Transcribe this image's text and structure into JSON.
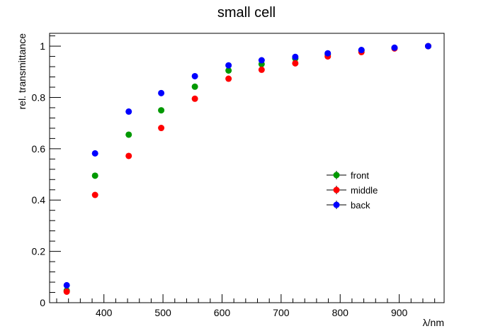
{
  "chart_data": {
    "type": "scatter",
    "title": "small cell",
    "xlabel": "λ/nm",
    "ylabel": "rel. transmittance",
    "xlim": [
      308,
      976
    ],
    "ylim": [
      0,
      1.05
    ],
    "x_ticks": [
      400,
      500,
      600,
      700,
      800,
      900
    ],
    "y_ticks": [
      0,
      0.2,
      0.4,
      0.6,
      0.8,
      1
    ],
    "grid": false,
    "legend_position": "center-right",
    "series": [
      {
        "name": "front",
        "color": "#009900",
        "x": [
          337,
          385,
          442,
          497,
          554,
          611,
          667,
          724,
          779,
          836,
          892,
          949
        ],
        "y": [
          0.047,
          0.495,
          0.655,
          0.75,
          0.842,
          0.905,
          0.93,
          0.952,
          0.967,
          0.983,
          0.993,
          1.0
        ]
      },
      {
        "name": "middle",
        "color": "#ff0000",
        "x": [
          337,
          385,
          442,
          497,
          554,
          611,
          667,
          724,
          779,
          836,
          892,
          949
        ],
        "y": [
          0.043,
          0.42,
          0.572,
          0.681,
          0.795,
          0.873,
          0.908,
          0.933,
          0.96,
          0.977,
          0.991,
          1.0
        ]
      },
      {
        "name": "back",
        "color": "#0000ff",
        "x": [
          337,
          385,
          442,
          497,
          554,
          611,
          667,
          724,
          779,
          836,
          892,
          949
        ],
        "y": [
          0.068,
          0.582,
          0.745,
          0.817,
          0.883,
          0.925,
          0.945,
          0.958,
          0.972,
          0.985,
          0.994,
          1.0
        ]
      }
    ]
  }
}
